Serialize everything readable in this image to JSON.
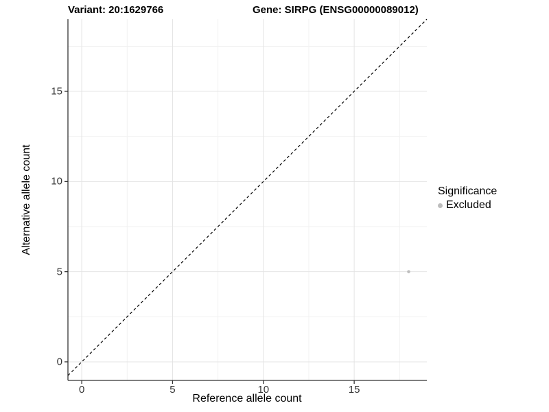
{
  "header": {
    "variant_title": "Variant: 20:1629766",
    "gene_title": "Gene: SIRPG (ENSG00000089012)"
  },
  "chart_data": {
    "type": "scatter",
    "title": "Variant: 20:1629766  |  Gene: SIRPG (ENSG00000089012)",
    "xlabel": "Reference allele count",
    "ylabel": "Alternative allele count",
    "xlim": [
      -0.76,
      19.0
    ],
    "ylim": [
      -1.03,
      19.0
    ],
    "x_ticks": [
      0,
      5,
      10,
      15
    ],
    "y_ticks": [
      0,
      5,
      10,
      15
    ],
    "x_minor_ticks": [
      2.5,
      7.5,
      12.5,
      17.5
    ],
    "y_minor_ticks": [
      2.5,
      7.5,
      12.5,
      17.5
    ],
    "grid": true,
    "points": [
      {
        "x": 18,
        "y": 5,
        "significance": "Excluded"
      }
    ],
    "identity_line": {
      "slope": 1,
      "intercept": 0,
      "style": "dashed",
      "color": "#000000"
    },
    "legend": {
      "title": "Significance",
      "position": "right",
      "entries": [
        {
          "label": "Excluded",
          "color": "#bdbdbd"
        }
      ]
    },
    "colors": {
      "point": "#bdbdbd",
      "grid_major": "#e4e4e4",
      "grid_minor": "#f1f1f1",
      "axis": "#333333",
      "tick_text": "#333333",
      "title_text": "#000000"
    }
  }
}
